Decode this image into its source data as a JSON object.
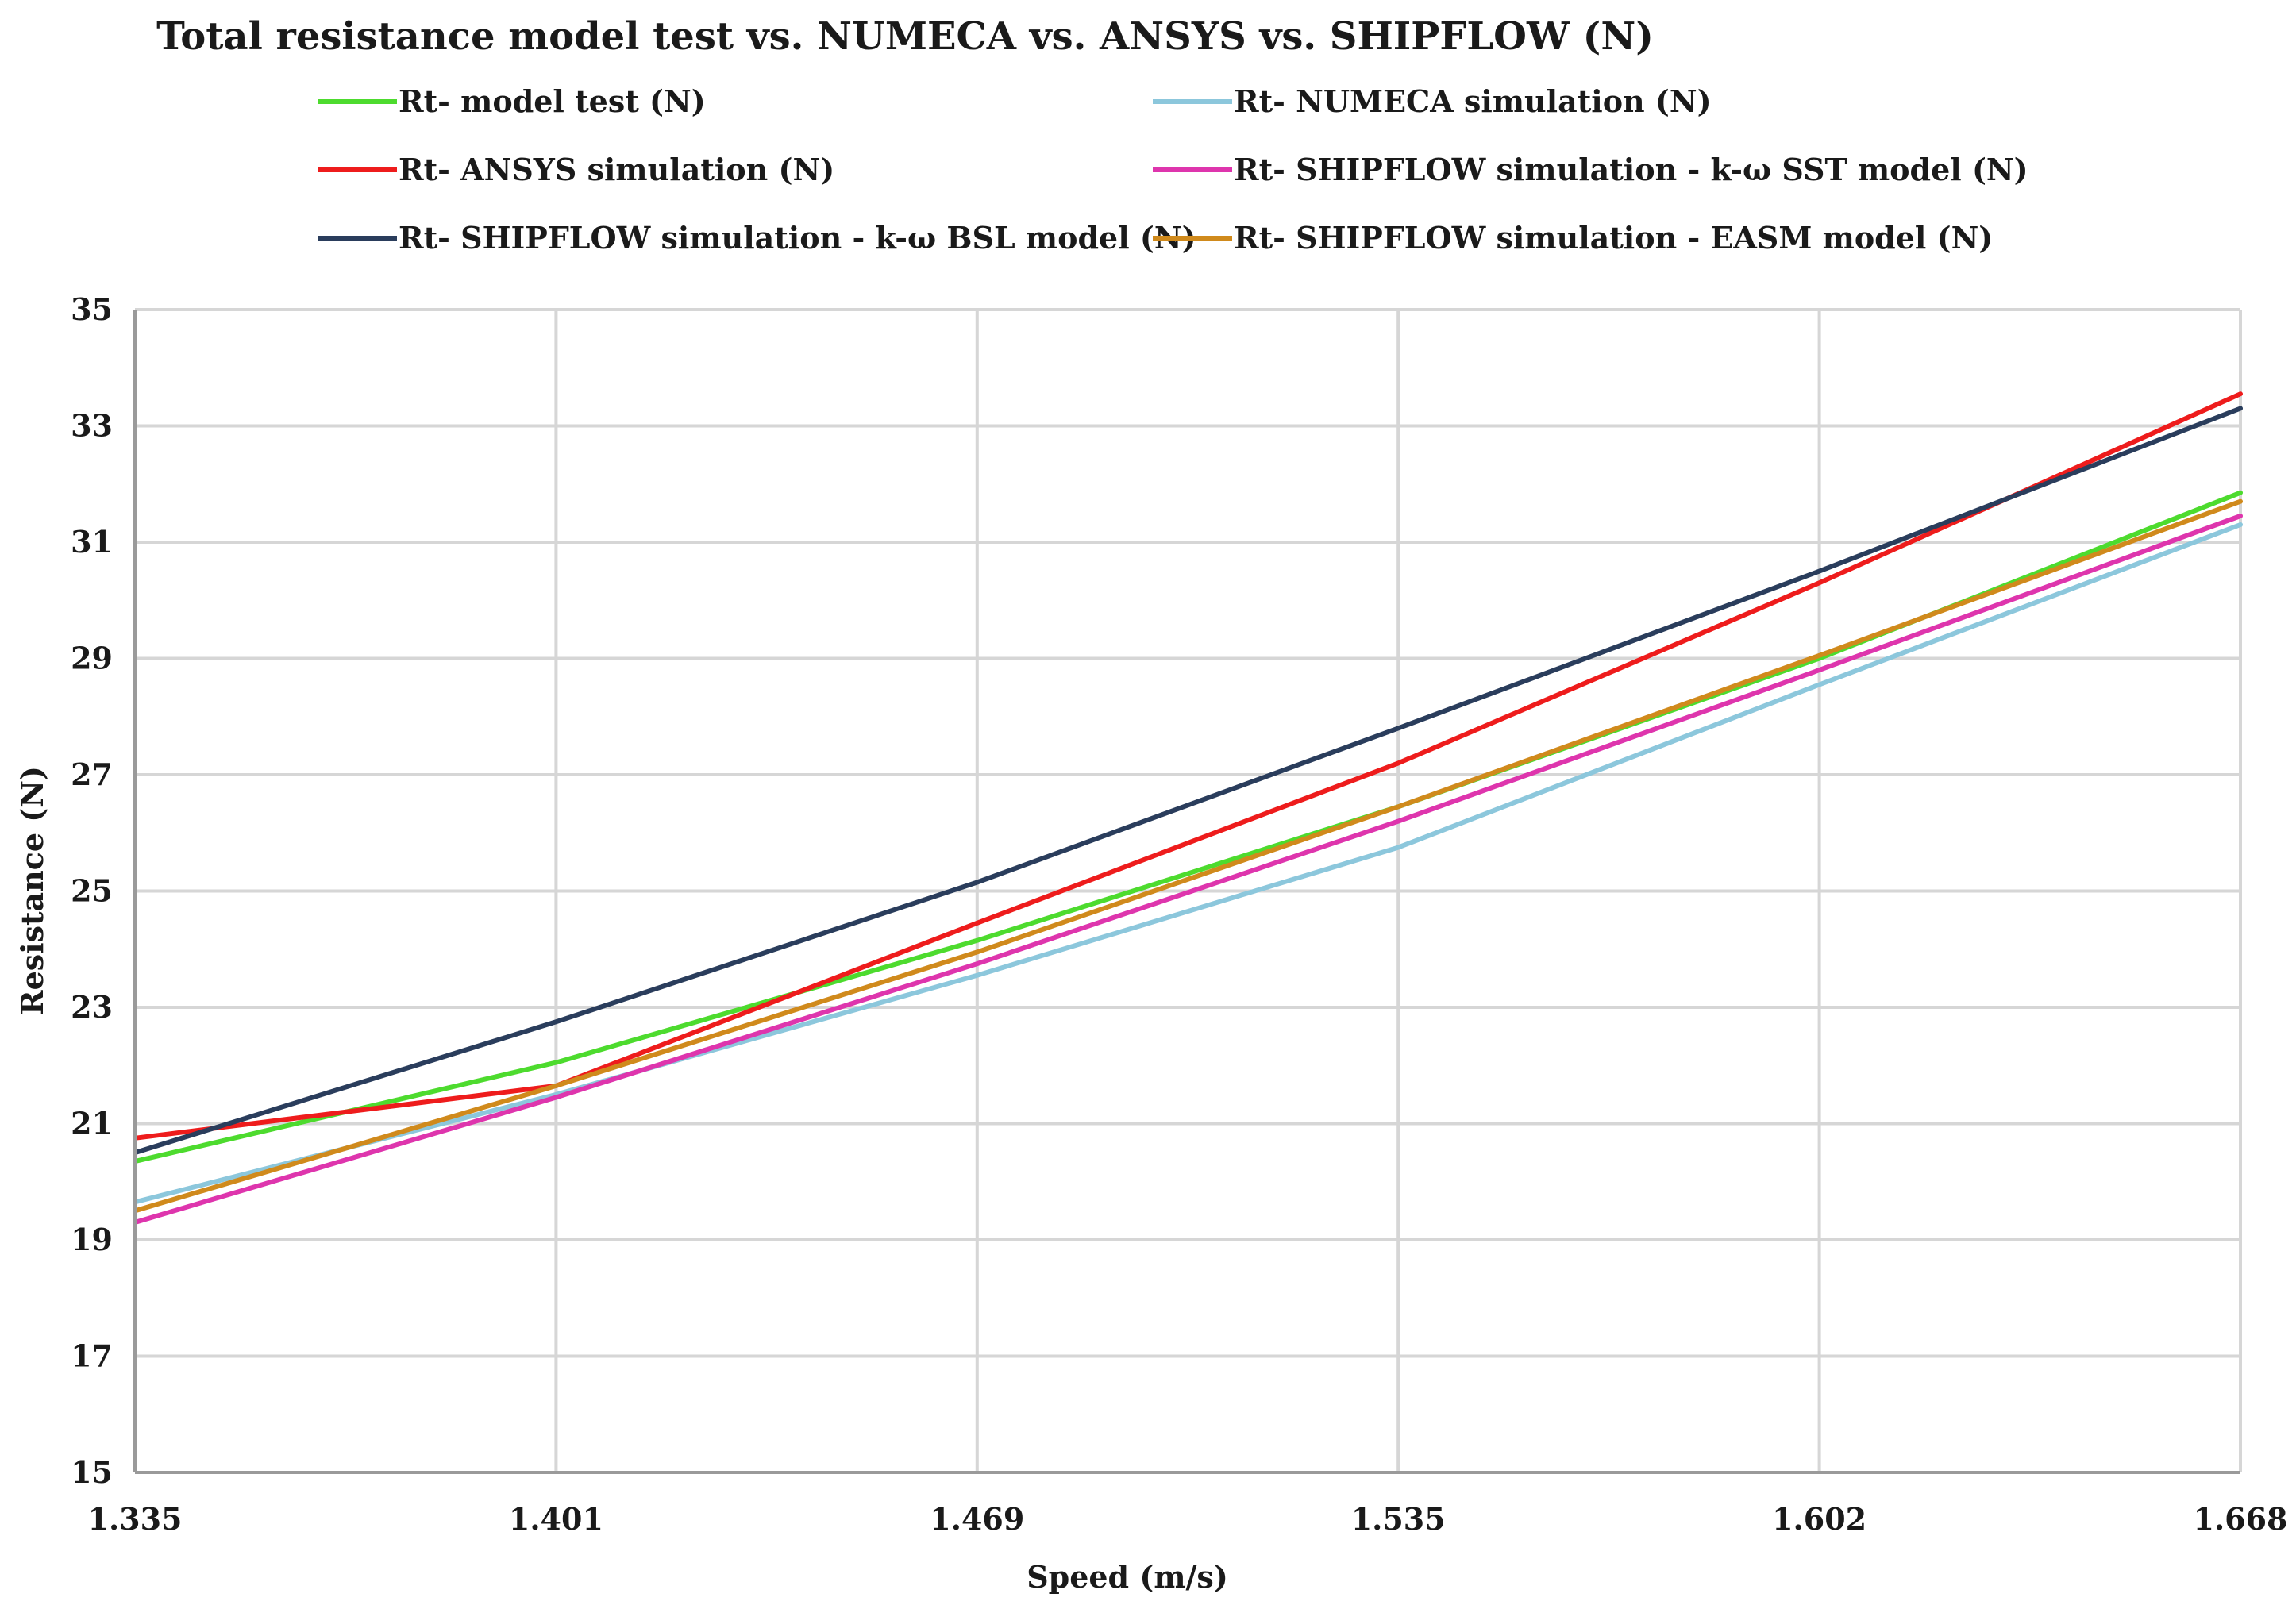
{
  "chart_data": {
    "type": "line",
    "title": "Total resistance model test vs. NUMECA vs. ANSYS vs. SHIPFLOW (N)",
    "xlabel": "Speed (m/s)",
    "ylabel": "Resistance (N)",
    "x": [
      1.335,
      1.401,
      1.469,
      1.535,
      1.602,
      1.668
    ],
    "x_tick_labels": [
      "1.335",
      "1.401",
      "1.469",
      "1.535",
      "1.602",
      "1.668"
    ],
    "ylim": [
      15,
      35
    ],
    "y_ticks": [
      15,
      17,
      19,
      21,
      23,
      25,
      27,
      29,
      31,
      33,
      35
    ],
    "y_tick_labels": [
      "15",
      "17",
      "19",
      "21",
      "23",
      "25",
      "27",
      "29",
      "31",
      "33",
      "35"
    ],
    "grid": true,
    "legend_position": "top",
    "series": [
      {
        "name": "Rt- model test (N)",
        "color": "#4ddb2e",
        "values": [
          20.35,
          22.05,
          24.15,
          26.45,
          29.0,
          31.85
        ]
      },
      {
        "name": "Rt- NUMECA simulation (N)",
        "color": "#8cc7dc",
        "values": [
          19.65,
          21.5,
          23.55,
          25.75,
          28.55,
          31.3
        ]
      },
      {
        "name": "Rt- ANSYS simulation (N)",
        "color": "#ee1c1c",
        "values": [
          20.75,
          21.65,
          24.45,
          27.2,
          30.3,
          33.55
        ]
      },
      {
        "name": "Rt- SHIPFLOW simulation - k-ω SST model (N)",
        "color": "#de35ad",
        "values": [
          19.3,
          21.45,
          23.75,
          26.2,
          28.8,
          31.45
        ]
      },
      {
        "name": "Rt- SHIPFLOW simulation - k-ω BSL model (N)",
        "color": "#2a3d5c",
        "values": [
          20.5,
          22.75,
          25.15,
          27.8,
          30.5,
          33.3
        ]
      },
      {
        "name": "Rt- SHIPFLOW simulation - EASM model (N)",
        "color": "#d08a1c",
        "values": [
          19.5,
          21.65,
          23.95,
          26.45,
          29.05,
          31.7
        ]
      }
    ]
  }
}
